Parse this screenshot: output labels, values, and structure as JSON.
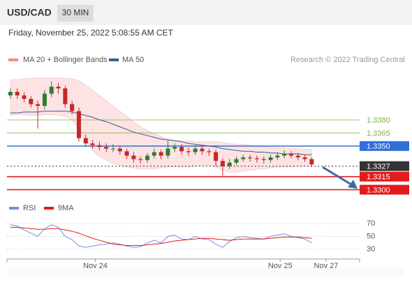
{
  "header": {
    "symbol": "USD/CAD",
    "timeframe": "30 MIN",
    "date": "Friday, November 25, 2022 5:08:55 AM CET"
  },
  "chart_data": {
    "type": "candlestick",
    "credit": "Research © 2022 Trading Central",
    "xlim": [
      -0.5,
      51
    ],
    "xticks": [
      {
        "value": 12.4,
        "label": "Nov 24"
      },
      {
        "value": 39.4,
        "label": "Nov 25"
      },
      {
        "value": 46.1,
        "label": "Nov 27"
      }
    ],
    "ylim": [
      1.329,
      1.34375
    ],
    "candles": {
      "up_color": "#2e7d32",
      "down_color": "#c62828",
      "open": [
        1.3408,
        1.3412,
        1.3408,
        1.3404,
        1.3398,
        1.3396,
        1.341,
        1.3418,
        1.3416,
        1.3398,
        1.339,
        1.3359,
        1.3353,
        1.3351,
        1.3349,
        1.3347,
        1.3347,
        1.3344,
        1.3339,
        1.3335,
        1.3334,
        1.3339,
        1.3343,
        1.3339,
        1.3347,
        1.3349,
        1.3344,
        1.3343,
        1.3347,
        1.3344,
        1.3343,
        1.3333,
        1.3327,
        1.3331,
        1.3335,
        1.3337,
        1.3336,
        1.3335,
        1.3334,
        1.3337,
        1.3339,
        1.3341,
        1.3339,
        1.3337,
        1.3335
      ],
      "high": [
        1.3416,
        1.3416,
        1.3412,
        1.3407,
        1.3402,
        1.3414,
        1.3424,
        1.3422,
        1.3419,
        1.3402,
        1.3394,
        1.3363,
        1.3357,
        1.3355,
        1.3353,
        1.3352,
        1.335,
        1.3347,
        1.3343,
        1.3338,
        1.3342,
        1.3347,
        1.3346,
        1.3356,
        1.3353,
        1.3352,
        1.3348,
        1.3351,
        1.335,
        1.3347,
        1.3346,
        1.3336,
        1.3335,
        1.3338,
        1.334,
        1.334,
        1.3339,
        1.3338,
        1.334,
        1.3342,
        1.3345,
        1.3344,
        1.3342,
        1.334,
        1.3337
      ],
      "low": [
        1.3404,
        1.3404,
        1.34,
        1.3394,
        1.337,
        1.3392,
        1.3406,
        1.341,
        1.3394,
        1.3386,
        1.3355,
        1.3349,
        1.3347,
        1.3345,
        1.3343,
        1.3343,
        1.334,
        1.3335,
        1.3331,
        1.333,
        1.3331,
        1.3336,
        1.3335,
        1.3336,
        1.3343,
        1.334,
        1.3339,
        1.334,
        1.334,
        1.3339,
        1.3327,
        1.3316,
        1.3324,
        1.3328,
        1.3332,
        1.3332,
        1.3331,
        1.333,
        1.3331,
        1.3334,
        1.3336,
        1.3336,
        1.3334,
        1.3332,
        1.3326
      ],
      "close": [
        1.3412,
        1.3408,
        1.3404,
        1.3398,
        1.3396,
        1.341,
        1.3418,
        1.3416,
        1.3398,
        1.339,
        1.3359,
        1.3353,
        1.3351,
        1.3349,
        1.3347,
        1.3347,
        1.3344,
        1.3339,
        1.3335,
        1.3334,
        1.3339,
        1.3343,
        1.3339,
        1.3347,
        1.3349,
        1.3344,
        1.3343,
        1.3347,
        1.3344,
        1.3343,
        1.3333,
        1.3327,
        1.3331,
        1.3335,
        1.3337,
        1.3336,
        1.3335,
        1.3334,
        1.3337,
        1.3339,
        1.3341,
        1.3339,
        1.3337,
        1.3335,
        1.3329
      ]
    },
    "bollinger": {
      "name": "MA 20 + Bollinger Bands",
      "color": "#f08c8c",
      "fill": "#fde3e3",
      "upper": [
        1.3426,
        1.3426,
        1.3427,
        1.3428,
        1.3428,
        1.3428,
        1.3428,
        1.3428,
        1.3428,
        1.3427,
        1.3425,
        1.342,
        1.3414,
        1.3408,
        1.3402,
        1.3396,
        1.339,
        1.3384,
        1.3378,
        1.3372,
        1.3368,
        1.3364,
        1.3361,
        1.3358,
        1.3357,
        1.3356,
        1.3356,
        1.3355,
        1.3355,
        1.3355,
        1.3355,
        1.3354,
        1.3353,
        1.3352,
        1.3352,
        1.3351,
        1.335,
        1.3349,
        1.3349,
        1.3348,
        1.3348,
        1.3347,
        1.3347,
        1.3346,
        1.3346
      ],
      "lower": [
        1.3385,
        1.3386,
        1.3386,
        1.3385,
        1.3385,
        1.3386,
        1.3386,
        1.3385,
        1.3384,
        1.338,
        1.3368,
        1.3355,
        1.3345,
        1.3338,
        1.3334,
        1.333,
        1.3328,
        1.3326,
        1.3325,
        1.3324,
        1.3324,
        1.3324,
        1.3325,
        1.3326,
        1.3326,
        1.3326,
        1.3326,
        1.3327,
        1.3328,
        1.3328,
        1.3326,
        1.3322,
        1.332,
        1.332,
        1.3321,
        1.3322,
        1.3323,
        1.3324,
        1.3325,
        1.3326,
        1.3326,
        1.3326,
        1.3327,
        1.3327,
        1.3327
      ]
    },
    "ma50": {
      "name": "MA 50",
      "color": "#3d5a98",
      "values": [
        1.3388,
        1.3388,
        1.3389,
        1.3389,
        1.3389,
        1.339,
        1.339,
        1.339,
        1.339,
        1.3389,
        1.3387,
        1.3385,
        1.3383,
        1.338,
        1.3378,
        1.3375,
        1.3372,
        1.3369,
        1.3366,
        1.3364,
        1.3362,
        1.336,
        1.3358,
        1.3357,
        1.3356,
        1.3355,
        1.3353,
        1.3352,
        1.3351,
        1.335,
        1.3349,
        1.3347,
        1.3346,
        1.3345,
        1.3344,
        1.3344,
        1.3343,
        1.3343,
        1.3342,
        1.3342,
        1.3341,
        1.3341,
        1.3341,
        1.334,
        1.334
      ]
    },
    "levels": [
      {
        "value": 1.338,
        "label": "1.3380",
        "color": "#7cb342",
        "line": "solid",
        "box": false
      },
      {
        "value": 1.3365,
        "color": "#7cb342",
        "line": "solid",
        "box": false
      },
      {
        "value": 1.335,
        "label": "1.3350",
        "color": "#2f6fd6",
        "line": "solid",
        "box": true
      },
      {
        "value": 1.3327,
        "color": "#333333",
        "line": "dotted",
        "box": true
      },
      {
        "value": 1.3315,
        "color": "#e31b1b",
        "line": "solid",
        "box": true
      },
      {
        "value": 1.33,
        "label": "1.3300",
        "color": "#e31b1b",
        "line": "solid",
        "box": true
      }
    ],
    "rsi": {
      "type": "line",
      "ylim": [
        15,
        85
      ],
      "yticks": [
        70,
        50,
        30
      ],
      "series": [
        {
          "name": "RSI",
          "color": "#6f8fe0",
          "values": [
            68,
            66,
            60,
            55,
            50,
            62,
            68,
            64,
            50,
            45,
            35,
            33,
            35,
            37,
            38,
            40,
            38,
            35,
            33,
            34,
            40,
            44,
            40,
            50,
            52,
            46,
            45,
            50,
            46,
            45,
            38,
            33,
            42,
            48,
            50,
            48,
            47,
            46,
            50,
            52,
            54,
            50,
            48,
            46,
            40
          ]
        },
        {
          "name": "9MA",
          "color": "#e31b1b",
          "values": [
            64,
            64,
            63,
            62,
            61,
            61,
            62,
            62,
            60,
            58,
            55,
            51,
            47,
            44,
            41,
            38,
            37,
            36,
            36,
            36,
            37,
            38,
            39,
            41,
            43,
            44,
            45,
            46,
            47,
            47,
            46,
            45,
            44,
            45,
            46,
            46,
            46,
            46,
            47,
            48,
            49,
            49,
            49,
            48,
            47
          ]
        }
      ]
    }
  }
}
